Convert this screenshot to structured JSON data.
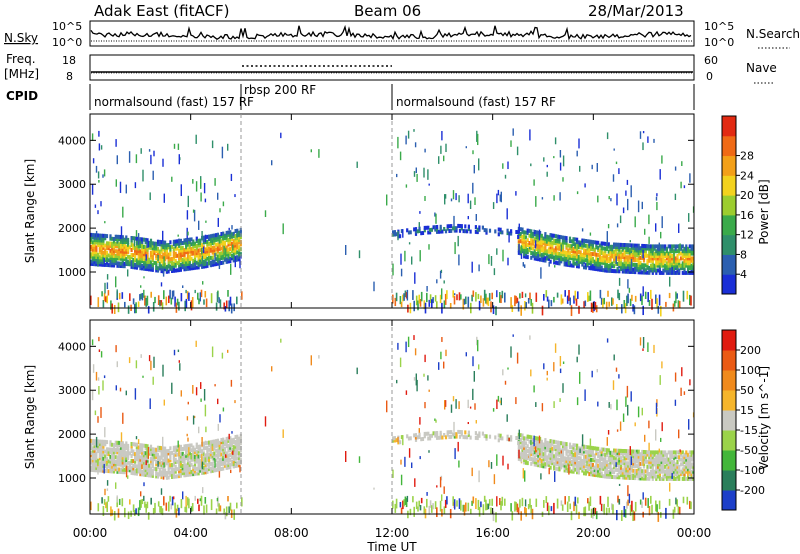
{
  "header": {
    "title": "Adak East (fitACF)",
    "beam": "Beam 06",
    "date": "28/Mar/2013"
  },
  "noise_panel": {
    "left_label": "N.Sky",
    "right_label": "N.Search",
    "left_ticks": [
      "10^5",
      "10^0"
    ],
    "right_ticks": [
      "10^5",
      "10^0"
    ]
  },
  "freq_panel": {
    "left_label_line1": "Freq.",
    "left_label_line2": "[MHz]",
    "right_label": "Nave",
    "left_ticks": [
      "18",
      "8"
    ],
    "right_ticks": [
      "60",
      "0"
    ]
  },
  "cpid_panel": {
    "label": "CPID",
    "segments": [
      {
        "text": "normalsound (fast) 157 RF",
        "start_hr": 0,
        "end_hr": 6
      },
      {
        "text": "rbsp 200 RF",
        "start_hr": 6,
        "end_hr": 12
      },
      {
        "text": "normalsound (fast) 157 RF",
        "start_hr": 12,
        "end_hr": 24
      }
    ]
  },
  "time_axis": {
    "label": "Time UT",
    "ticks": [
      "00:00",
      "04:00",
      "08:00",
      "12:00",
      "16:00",
      "20:00",
      "00:00"
    ]
  },
  "range_axis": {
    "label": "Slant Range [km]",
    "ticks": [
      "1000",
      "2000",
      "3000",
      "4000"
    ]
  },
  "power_colorbar": {
    "label": "Power [dB]",
    "ticks": [
      "4",
      "8",
      "12",
      "16",
      "20",
      "24",
      "28"
    ],
    "colors": [
      "#1a2fd6",
      "#2b5fb0",
      "#2f8f6a",
      "#3aaa4a",
      "#9ccd2f",
      "#f3d21e",
      "#f3a019",
      "#ef6a16",
      "#e22a12"
    ]
  },
  "velocity_colorbar": {
    "label": "Velocity [m s^-1]",
    "ticks": [
      "200",
      "100",
      "50",
      "15",
      "-15",
      "-50",
      "-100",
      "-200"
    ],
    "colors": [
      "#1d3fc9",
      "#2a7e5b",
      "#43b63a",
      "#9bd34a",
      "#c9c9c2",
      "#f5b52b",
      "#f08a1c",
      "#ea5a14",
      "#e01b10"
    ]
  },
  "chart_data": {
    "type": "heatmap",
    "title": "Adak East (fitACF)",
    "xlabel": "Time UT",
    "ylabel": "Slant Range [km]",
    "xlim_hr": [
      0,
      24
    ],
    "ylim_km": [
      180,
      4600
    ],
    "mode_boundaries_hr": [
      6,
      12
    ],
    "power_echo_bands": [
      {
        "start_hr": 0,
        "end_hr": 6,
        "center_km": [
          1580,
          1520,
          1400,
          1520,
          1700
        ],
        "width_km": 700,
        "peak_db": 24
      },
      {
        "start_hr": 17,
        "end_hr": 24,
        "center_km": [
          1750,
          1550,
          1400,
          1350,
          1350
        ],
        "width_km": 650,
        "peak_db": 22
      },
      {
        "start_hr": 12,
        "end_hr": 17,
        "center_km": [
          1900,
          2000,
          2050,
          2000,
          1900
        ],
        "width_km": 120,
        "peak_db": 6
      }
    ],
    "velocity_dominant_bin": "-15 to 15"
  }
}
